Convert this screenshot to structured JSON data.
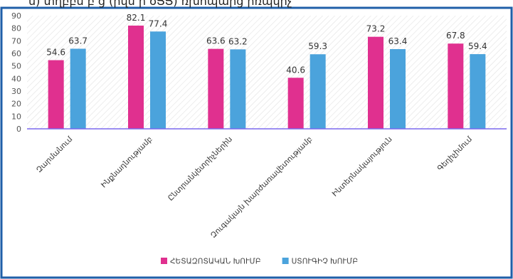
{
  "header_text": "ն) տղբբն բ ց (րվն ի ծՅՅ) ռխոպարց րռպկրչ",
  "chart_data": {
    "type": "bar",
    "categories": [
      "Զարմանում",
      "Ինքնադնությամբ",
      "Ընտրանկետրիչներին",
      "Զուգակայն խարժառավետությամբ",
      "Ինտերնակայություն",
      "Գեղիչիմում"
    ],
    "series": [
      {
        "name": "ՀԵՏԱԶՈՏԱԿԱՆ ԽՈՒՄԲ",
        "values": [
          54.6,
          82.1,
          63.6,
          40.6,
          73.2,
          67.8
        ],
        "color": "#e0308f"
      },
      {
        "name": "ՍՏՈՒԳԻՉ ԽՈՒՄԲ",
        "values": [
          63.7,
          77.4,
          63.2,
          59.3,
          63.4,
          59.4
        ],
        "color": "#4ba3dc"
      }
    ],
    "ylim": [
      0,
      90
    ],
    "yticks": [
      "0",
      "10",
      "20",
      "30",
      "40",
      "50",
      "60",
      "70",
      "80",
      "90"
    ],
    "grid": false,
    "legend_position": "bottom",
    "frame_color": "#1f5fa8",
    "axis_color": "#7b68ee"
  }
}
